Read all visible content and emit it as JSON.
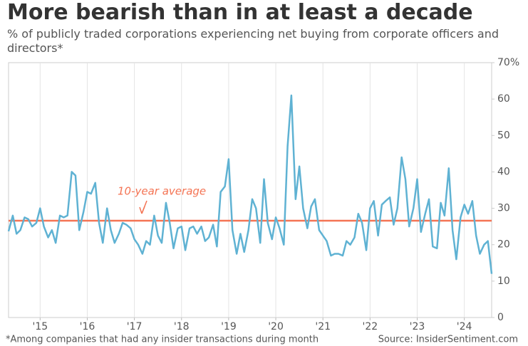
{
  "chart_data": {
    "type": "line",
    "title": "More bearish than in at least a decade",
    "subtitle": " % of publicly traded corporations experiencing net buying from corporate officers and directors*",
    "footnote": "*Among companies that had any insider transactions during month",
    "source": "Source: InsiderSentiment.com",
    "annotation": "10-year average",
    "average": 26.6,
    "average_color": "#f47454",
    "color": "#5fb2d3",
    "grid": true,
    "x": [
      2014.33,
      2014.42,
      2014.5,
      2014.58,
      2014.67,
      2014.75,
      2014.83,
      2014.92,
      2015.0,
      2015.08,
      2015.17,
      2015.25,
      2015.33,
      2015.42,
      2015.5,
      2015.58,
      2015.67,
      2015.75,
      2015.83,
      2015.92,
      2016.0,
      2016.08,
      2016.17,
      2016.25,
      2016.33,
      2016.42,
      2016.5,
      2016.58,
      2016.67,
      2016.75,
      2016.83,
      2016.92,
      2017.0,
      2017.08,
      2017.17,
      2017.25,
      2017.33,
      2017.42,
      2017.5,
      2017.58,
      2017.67,
      2017.75,
      2017.83,
      2017.92,
      2018.0,
      2018.08,
      2018.17,
      2018.25,
      2018.33,
      2018.42,
      2018.5,
      2018.58,
      2018.67,
      2018.75,
      2018.83,
      2018.92,
      2019.0,
      2019.08,
      2019.17,
      2019.25,
      2019.33,
      2019.42,
      2019.5,
      2019.58,
      2019.67,
      2019.75,
      2019.83,
      2019.92,
      2020.0,
      2020.08,
      2020.17,
      2020.25,
      2020.33,
      2020.42,
      2020.5,
      2020.58,
      2020.67,
      2020.75,
      2020.83,
      2020.92,
      2021.0,
      2021.08,
      2021.17,
      2021.25,
      2021.33,
      2021.42,
      2021.5,
      2021.58,
      2021.67,
      2021.75,
      2021.83,
      2021.92,
      2022.0,
      2022.08,
      2022.17,
      2022.25,
      2022.33,
      2022.42,
      2022.5,
      2022.58,
      2022.67,
      2022.75,
      2022.83,
      2022.92,
      2023.0,
      2023.08,
      2023.17,
      2023.25,
      2023.33,
      2023.42,
      2023.5,
      2023.58,
      2023.67,
      2023.75,
      2023.83,
      2023.92,
      2024.0,
      2024.08,
      2024.17,
      2024.25,
      2024.33,
      2024.42,
      2024.5,
      2024.58
    ],
    "values": [
      23.7,
      28,
      23,
      24,
      27.5,
      27,
      25,
      26,
      30,
      25,
      22,
      24,
      20.5,
      28,
      27.5,
      28,
      40,
      39,
      24,
      29,
      34.5,
      34,
      37,
      26,
      20.5,
      30,
      24,
      20.5,
      23,
      26,
      25.5,
      24.5,
      21.5,
      20,
      17.5,
      21,
      20,
      28,
      22.5,
      20.5,
      31.5,
      26,
      19,
      24.5,
      25,
      18.5,
      24.5,
      25,
      23,
      25,
      21,
      22,
      25.5,
      19.5,
      34.5,
      36,
      43.5,
      24,
      17.5,
      23,
      18,
      24,
      32.5,
      30,
      20.5,
      38,
      26,
      21.5,
      27.5,
      24.5,
      20,
      47,
      61,
      32.5,
      41.5,
      30,
      24.5,
      30.5,
      32.5,
      24,
      22.5,
      21,
      17,
      17.5,
      17.5,
      17,
      21,
      20,
      22,
      28.5,
      26,
      18.5,
      30,
      32,
      22.5,
      31,
      32,
      33,
      25.5,
      30,
      44,
      38,
      25,
      30,
      38,
      23.5,
      28.5,
      32.5,
      19.5,
      19,
      31.5,
      28,
      41,
      24,
      16,
      27.5,
      31,
      28.5,
      32,
      22.5,
      17.5,
      20,
      21,
      12
    ],
    "xlim": [
      2014.33,
      2024.58
    ],
    "xticks": [
      {
        "value": 2015,
        "label": "'15"
      },
      {
        "value": 2016,
        "label": "'16"
      },
      {
        "value": 2017,
        "label": "'17"
      },
      {
        "value": 2018,
        "label": "'18"
      },
      {
        "value": 2019,
        "label": "'19"
      },
      {
        "value": 2020,
        "label": "'20"
      },
      {
        "value": 2021,
        "label": "'21"
      },
      {
        "value": 2022,
        "label": "'22"
      },
      {
        "value": 2023,
        "label": "'23"
      },
      {
        "value": 2024,
        "label": "'24"
      }
    ],
    "ylim": [
      0,
      70
    ],
    "yticks": [
      0,
      10,
      20,
      30,
      40,
      50,
      60,
      {
        "value": 70,
        "label": "70%"
      }
    ]
  }
}
